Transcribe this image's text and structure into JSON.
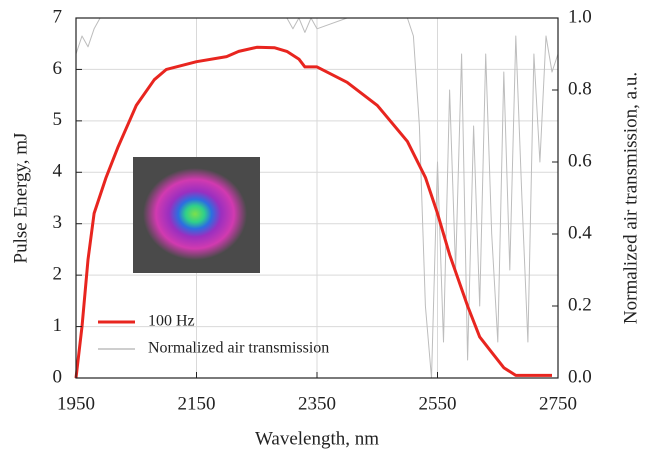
{
  "chart_data": {
    "type": "line",
    "xlabel": "Wavelength, nm",
    "ylabel": "Pulse Energy, mJ",
    "y2label": "Normalized air transmission, a.u.",
    "xlim": [
      1950,
      2750
    ],
    "xticks": [
      1950,
      2150,
      2350,
      2550,
      2750
    ],
    "ylim": [
      0,
      7
    ],
    "yticks": [
      0,
      1,
      2,
      3,
      4,
      5,
      6,
      7
    ],
    "y2lim": [
      0,
      1
    ],
    "y2ticks": [
      {
        "value": 0,
        "label": "0.0"
      },
      0.2,
      0.4,
      0.6,
      0.8,
      {
        "value": 1,
        "label": "1.0"
      }
    ],
    "grid": true,
    "legend": "lower left",
    "series": [
      {
        "name": "Normalized air transmission",
        "color": "#bdbdbd",
        "axis": "y2",
        "x": [
          1950,
          1960,
          1970,
          1980,
          1990,
          2000,
          2050,
          2100,
          2150,
          2200,
          2250,
          2300,
          2310,
          2320,
          2330,
          2340,
          2350,
          2400,
          2450,
          2500,
          2510,
          2520,
          2530,
          2540,
          2550,
          2560,
          2570,
          2580,
          2590,
          2600,
          2610,
          2620,
          2630,
          2640,
          2650,
          2660,
          2670,
          2680,
          2690,
          2700,
          2710,
          2720,
          2730,
          2740,
          2750
        ],
        "values": [
          0.9,
          0.95,
          0.92,
          0.97,
          1,
          1,
          1,
          1,
          1,
          1,
          1,
          1,
          0.97,
          1,
          0.96,
          1,
          0.97,
          1,
          1,
          1,
          0.95,
          0.7,
          0.2,
          0.0,
          0.6,
          0.1,
          0.8,
          0.3,
          0.9,
          0.05,
          0.7,
          0.2,
          0.9,
          0.4,
          0.1,
          0.85,
          0.3,
          0.95,
          0.5,
          0.1,
          0.9,
          0.6,
          0.95,
          0.85,
          0.9
        ]
      },
      {
        "name": "100 Hz",
        "color": "#e8251f",
        "axis": "y",
        "x": [
          1950,
          1960,
          1970,
          1980,
          2000,
          2020,
          2050,
          2080,
          2100,
          2150,
          2200,
          2220,
          2250,
          2280,
          2300,
          2320,
          2330,
          2340,
          2350,
          2400,
          2450,
          2500,
          2530,
          2550,
          2570,
          2600,
          2620,
          2640,
          2660,
          2680,
          2700,
          2740
        ],
        "values": [
          0,
          1.0,
          2.3,
          3.2,
          3.9,
          4.5,
          5.3,
          5.8,
          6.0,
          6.15,
          6.25,
          6.35,
          6.43,
          6.42,
          6.35,
          6.2,
          6.05,
          6.05,
          6.05,
          5.75,
          5.3,
          4.6,
          3.9,
          3.2,
          2.4,
          1.4,
          0.8,
          0.5,
          0.2,
          0.05,
          0.05,
          0.05
        ]
      }
    ]
  }
}
